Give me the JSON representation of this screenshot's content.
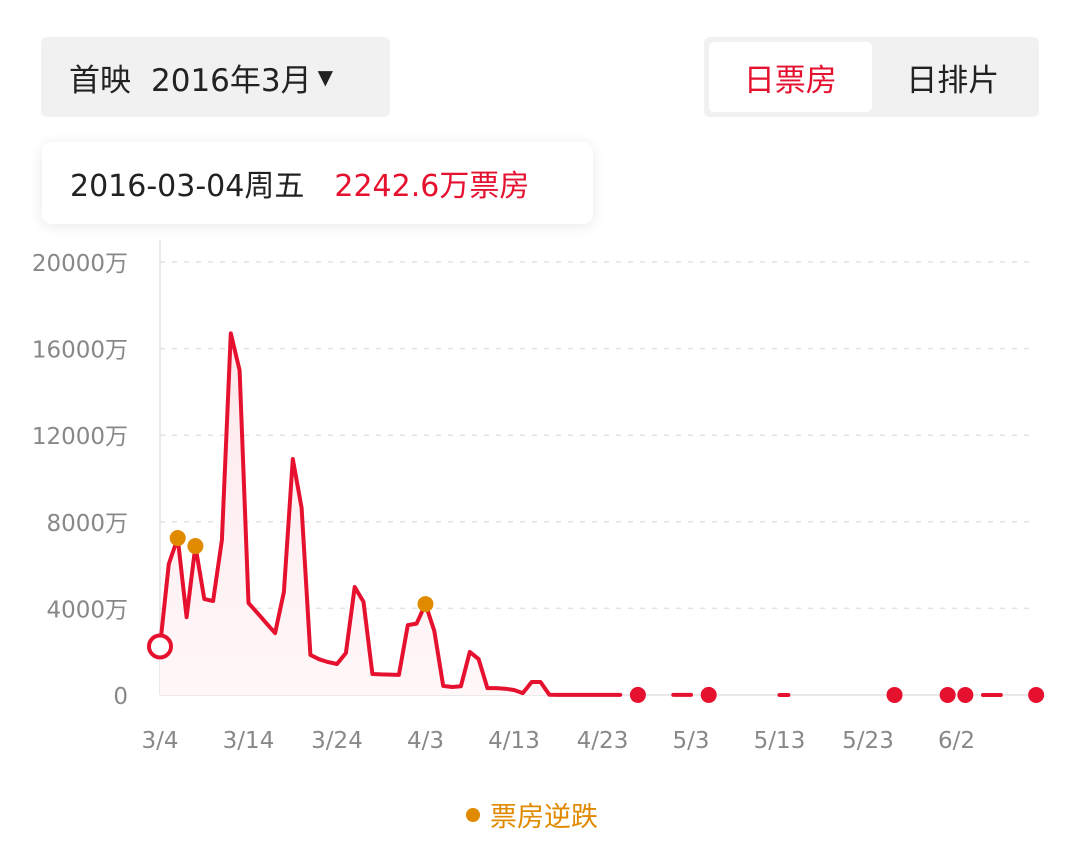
{
  "header": {
    "release_label": "首映",
    "month_value": "2016年3月",
    "dropdown_icon": "caret-down-icon",
    "tabs": [
      {
        "label": "日票房",
        "active": true
      },
      {
        "label": "日排片",
        "active": false
      }
    ]
  },
  "tooltip": {
    "date": "2016-03-04周五",
    "value": "2242.6万票房"
  },
  "colors": {
    "accent": "#e5112f",
    "reverse_marker": "#e08a00",
    "fill": "#fde8ec"
  },
  "chart_data": {
    "type": "area",
    "year": 2016,
    "x_ticks": [
      "3/4",
      "3/14",
      "3/24",
      "4/3",
      "4/13",
      "4/23",
      "5/3",
      "5/13",
      "5/23",
      "6/2"
    ],
    "y_ticks": [
      "0",
      "4000万",
      "8000万",
      "12000万",
      "16000万",
      "20000万"
    ],
    "ylim": [
      0,
      20000
    ],
    "yunit": "万",
    "grid": true,
    "legend": {
      "label": "票房逆跌",
      "placement": "bottom"
    },
    "selected": "3/4",
    "reverse_points": [
      "3/6",
      "3/8",
      "4/3"
    ],
    "points": [
      [
        "3/4",
        2242.6
      ],
      [
        "3/5",
        6050
      ],
      [
        "3/6",
        7250
      ],
      [
        "3/7",
        3600
      ],
      [
        "3/8",
        6880
      ],
      [
        "3/9",
        4430
      ],
      [
        "3/10",
        4340
      ],
      [
        "3/11",
        7160
      ],
      [
        "3/12",
        16700
      ],
      [
        "3/13",
        15000
      ],
      [
        "3/14",
        4250
      ],
      [
        "3/15",
        3790
      ],
      [
        "3/16",
        3320
      ],
      [
        "3/17",
        2860
      ],
      [
        "3/18",
        4760
      ],
      [
        "3/19",
        10900
      ],
      [
        "3/20",
        8640
      ],
      [
        "3/21",
        1850
      ],
      [
        "3/22",
        1650
      ],
      [
        "3/23",
        1520
      ],
      [
        "3/24",
        1430
      ],
      [
        "3/25",
        1940
      ],
      [
        "3/26",
        4990
      ],
      [
        "3/27",
        4300
      ],
      [
        "3/28",
        970
      ],
      [
        "3/29",
        950
      ],
      [
        "3/30",
        940
      ],
      [
        "3/31",
        930
      ],
      [
        "4/1",
        3230
      ],
      [
        "4/2",
        3300
      ],
      [
        "4/3",
        4200
      ],
      [
        "4/4",
        2960
      ],
      [
        "4/5",
        420
      ],
      [
        "4/6",
        370
      ],
      [
        "4/7",
        400
      ],
      [
        "4/8",
        1990
      ],
      [
        "4/9",
        1660
      ],
      [
        "4/10",
        320
      ],
      [
        "4/11",
        320
      ],
      [
        "4/12",
        290
      ],
      [
        "4/13",
        230
      ],
      [
        "4/14",
        90
      ],
      [
        "4/15",
        600
      ],
      [
        "4/16",
        600
      ],
      [
        "4/17",
        10
      ],
      [
        "4/18",
        5
      ],
      [
        "4/19",
        5
      ],
      [
        "4/20",
        5
      ],
      [
        "4/21",
        5
      ],
      [
        "4/22",
        5
      ],
      [
        "4/23",
        5
      ],
      [
        "4/24",
        5
      ],
      [
        "4/25",
        5
      ],
      [
        "4/27",
        3
      ],
      [
        "5/1",
        3
      ],
      [
        "5/2",
        3
      ],
      [
        "5/3",
        3
      ],
      [
        "5/5",
        3
      ],
      [
        "5/13",
        2
      ],
      [
        "5/14",
        2
      ],
      [
        "5/26",
        2
      ],
      [
        "6/1",
        2
      ],
      [
        "6/3",
        2
      ],
      [
        "6/5",
        2
      ],
      [
        "6/6",
        2
      ],
      [
        "6/7",
        2
      ],
      [
        "6/11",
        2
      ]
    ]
  }
}
